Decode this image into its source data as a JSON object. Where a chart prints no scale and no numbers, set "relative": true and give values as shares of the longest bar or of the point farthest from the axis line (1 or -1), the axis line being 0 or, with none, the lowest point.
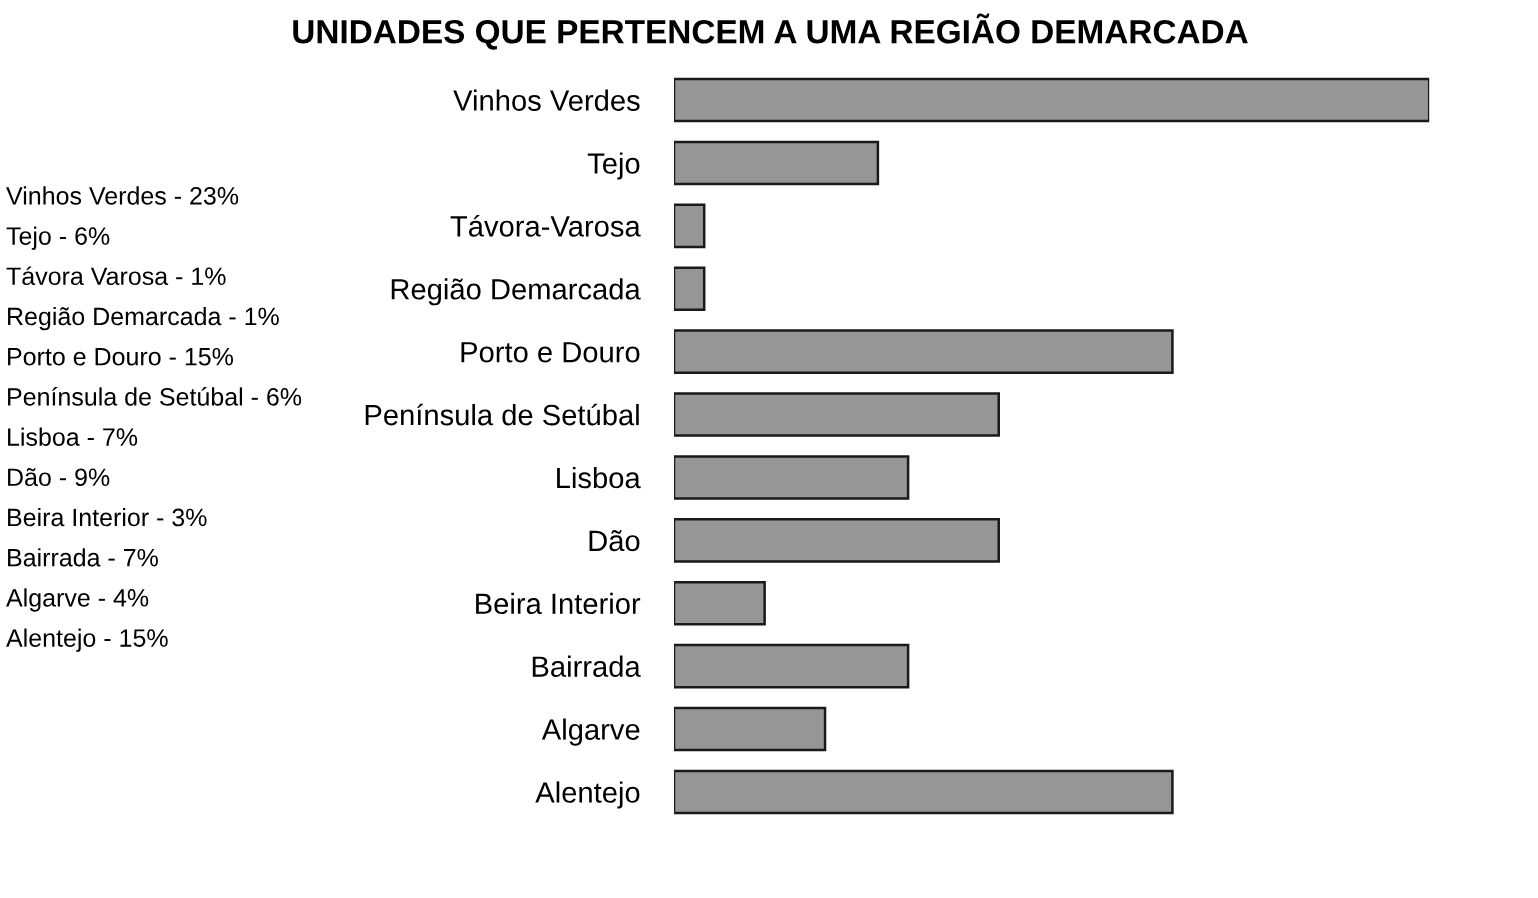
{
  "chart_data": {
    "type": "bar",
    "orientation": "horizontal",
    "relative": true,
    "title": "UNIDADES QUE PERTENCEM A UMA REGIÃO DEMARCADA",
    "categories": [
      "Vinhos Verdes",
      "Tejo",
      "Távora-Varosa",
      "Região Demarcada",
      "Porto e Douro",
      "Península de Setúbal",
      "Lisboa",
      "Dão",
      "Beira Interior",
      "Bairrada",
      "Algarve",
      "Alentejo"
    ],
    "values": [
      1,
      0.27,
      0.04,
      0.04,
      0.66,
      0.43,
      0.31,
      0.43,
      0.12,
      0.31,
      0.2,
      0.66
    ],
    "color": "#969696",
    "annotations": [
      "Vinhos Verdes - 23%",
      "Tejo - 6%",
      "Távora Varosa - 1%",
      "Região Demarcada - 1%",
      "Porto e Douro - 15%",
      "Península de Setúbal - 6%",
      "Lisboa - 7%",
      "Dão - 9%",
      "Beira Interior - 3%",
      "Bairrada - 7%",
      "Algarve - 4%",
      "Alentejo - 15%"
    ]
  }
}
